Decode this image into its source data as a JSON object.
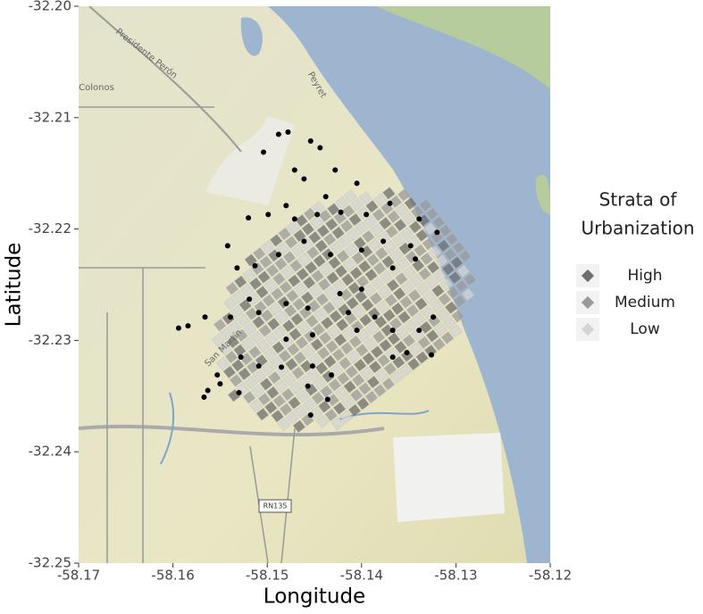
{
  "chart_data": {
    "type": "scatter",
    "x_label": "Longitude",
    "y_label": "Latitude",
    "xlim": [
      -58.17,
      -58.12
    ],
    "ylim": [
      -32.25,
      -32.2
    ],
    "xticks": [
      -58.17,
      -58.16,
      -58.15,
      -58.14,
      -58.13,
      -58.12
    ],
    "yticks": [
      {
        "value": -32.2,
        "label": "-32.20"
      },
      -32.21,
      -32.22,
      -32.23,
      -32.24,
      -32.25
    ],
    "point_color": "#000000",
    "legend_title": [
      "Strata of",
      "Urbanization"
    ],
    "strata": [
      {
        "name": "High",
        "color": "#6e6e6e"
      },
      {
        "name": "Medium",
        "color": "#9a9a9a"
      },
      {
        "name": "Low",
        "color": "#d4d4d4"
      }
    ],
    "annotations": [
      "Presidente Perón",
      "Peyret",
      "Colonos",
      "San Martín",
      "RN135"
    ],
    "x": [
      -58.1488,
      -58.1478,
      -58.1454,
      -58.1444,
      -58.1471,
      -58.1428,
      -58.1405,
      -58.1499,
      -58.152,
      -58.1471,
      -58.1447,
      -58.1422,
      -58.1395,
      -58.137,
      -58.1339,
      -58.132,
      -58.1532,
      -58.1513,
      -58.1488,
      -58.1461,
      -58.1433,
      -58.14,
      -58.1367,
      -58.1343,
      -58.1519,
      -58.1539,
      -58.1566,
      -58.1584,
      -58.1594,
      -58.1509,
      -58.148,
      -58.1457,
      -58.1423,
      -58.14,
      -58.1386,
      -58.1405,
      -58.1367,
      -58.1339,
      -58.1324,
      -58.1452,
      -58.148,
      -58.1528,
      -58.1509,
      -58.1485,
      -58.1553,
      -58.1563,
      -58.1567,
      -58.155,
      -58.153,
      -58.1452,
      -58.1432,
      -58.1457,
      -58.1436,
      -58.1454,
      -58.1367,
      -58.1352,
      -58.1326,
      -58.1348,
      -58.1377,
      -58.1414,
      -58.1504,
      -58.1461,
      -58.1438,
      -58.148,
      -58.1542
    ],
    "y": [
      -32.2115,
      -32.2113,
      -32.2121,
      -32.2127,
      -32.2147,
      -32.2147,
      -32.2159,
      -32.2187,
      -32.219,
      -32.2191,
      -32.2187,
      -32.2185,
      -32.2187,
      -32.2177,
      -32.2191,
      -32.2203,
      -32.2235,
      -32.2233,
      -32.2223,
      -32.2211,
      -32.2223,
      -32.2219,
      -32.2235,
      -32.2227,
      -32.2263,
      -32.2279,
      -32.2279,
      -32.2287,
      -32.2289,
      -32.2275,
      -32.2267,
      -32.2271,
      -32.2258,
      -32.2254,
      -32.2279,
      -32.2291,
      -32.2291,
      -32.2291,
      -32.2279,
      -32.2295,
      -32.2299,
      -32.2315,
      -32.2323,
      -32.2324,
      -32.2331,
      -32.2345,
      -32.2351,
      -32.2339,
      -32.2347,
      -32.2323,
      -32.2331,
      -32.2341,
      -32.2353,
      -32.2367,
      -32.2315,
      -32.2311,
      -32.2313,
      -32.2215,
      -32.2211,
      -32.2275,
      -32.2131,
      -32.2155,
      -32.2171,
      -32.2179,
      -32.2215
    ]
  }
}
